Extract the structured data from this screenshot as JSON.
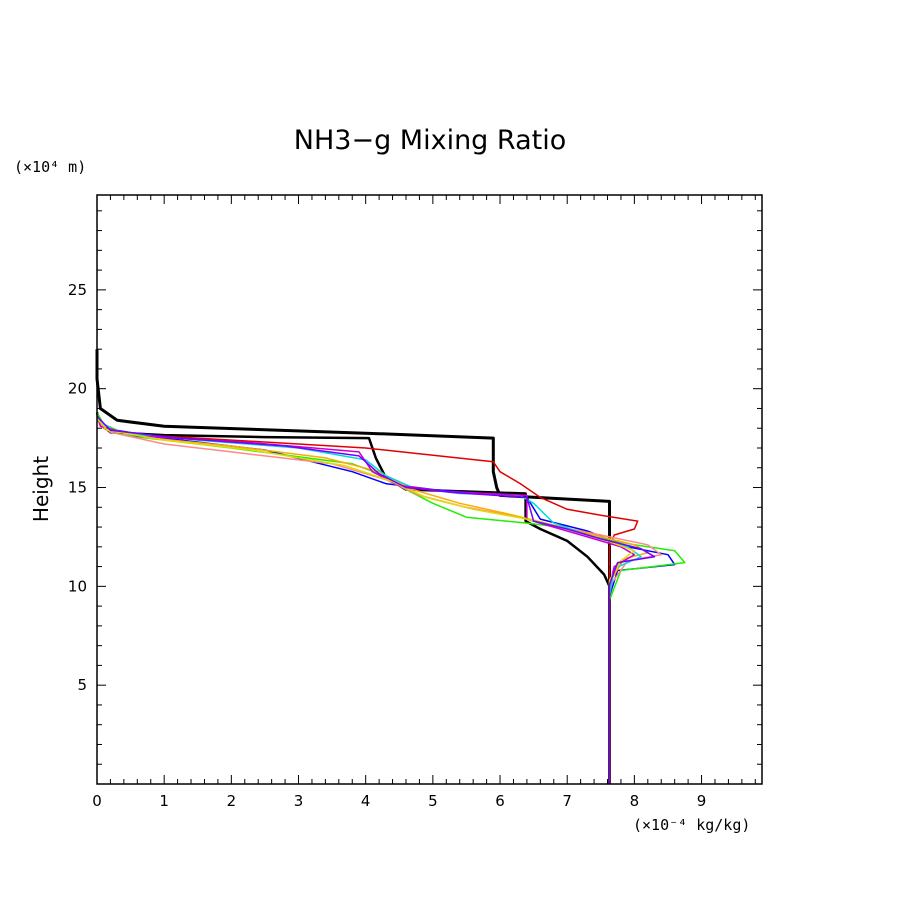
{
  "chart_data": {
    "type": "line",
    "title": "NH3−g Mixing Ratio",
    "xlabel": "",
    "ylabel": "Height",
    "x_unit": "(×10⁻⁴ kg/kg)",
    "y_unit": "(×10⁴ m)",
    "xlim": [
      0,
      9.9
    ],
    "ylim": [
      0,
      29.8
    ],
    "x_ticks": [
      0,
      1,
      2,
      3,
      4,
      5,
      6,
      7,
      8,
      9
    ],
    "y_ticks": [
      5,
      10,
      15,
      20,
      25
    ],
    "x_tick_labels": [
      "0",
      "1",
      "2",
      "3",
      "4",
      "5",
      "6",
      "7",
      "8",
      "9"
    ],
    "y_tick_labels": [
      "5",
      "10",
      "15",
      "20",
      "25"
    ],
    "grid": false,
    "series": [
      {
        "name": "profile-black-upper",
        "color": "#000000",
        "width": 3,
        "points": [
          [
            7.63,
            0
          ],
          [
            7.63,
            9
          ],
          [
            7.63,
            14.1
          ],
          [
            7.63,
            14.3
          ],
          [
            6.0,
            14.6
          ],
          [
            5.95,
            15.0
          ],
          [
            5.9,
            15.8
          ],
          [
            5.9,
            17.5
          ],
          [
            4.0,
            17.75
          ],
          [
            1.0,
            18.1
          ],
          [
            0.3,
            18.4
          ],
          [
            0.05,
            19.0
          ],
          [
            0.0,
            20.5
          ],
          [
            0.0,
            22.0
          ]
        ]
      },
      {
        "name": "profile-black-lower",
        "color": "#000000",
        "width": 2.5,
        "points": [
          [
            7.63,
            0
          ],
          [
            7.63,
            10.0
          ],
          [
            7.55,
            10.6
          ],
          [
            7.3,
            11.5
          ],
          [
            7.0,
            12.3
          ],
          [
            6.6,
            12.9
          ],
          [
            6.38,
            13.3
          ],
          [
            6.38,
            14.7
          ],
          [
            5.5,
            14.8
          ],
          [
            4.6,
            14.9
          ],
          [
            4.3,
            15.5
          ],
          [
            4.15,
            16.5
          ],
          [
            4.05,
            17.5
          ],
          [
            2.5,
            17.55
          ],
          [
            1.0,
            17.65
          ],
          [
            0.2,
            17.8
          ],
          [
            0.05,
            18.2
          ],
          [
            0.0,
            18.8
          ]
        ]
      },
      {
        "name": "profile-red",
        "color": "#e00000",
        "width": 1.5,
        "points": [
          [
            7.63,
            9
          ],
          [
            7.63,
            12.0
          ],
          [
            7.7,
            12.6
          ],
          [
            8.0,
            12.9
          ],
          [
            8.05,
            13.3
          ],
          [
            7.5,
            13.6
          ],
          [
            7.0,
            13.9
          ],
          [
            6.6,
            14.5
          ],
          [
            6.3,
            15.2
          ],
          [
            6.0,
            15.8
          ],
          [
            5.9,
            16.3
          ],
          [
            4.0,
            17.0
          ],
          [
            2.0,
            17.4
          ],
          [
            0.5,
            17.7
          ],
          [
            0.1,
            18.0
          ],
          [
            0.0,
            18.6
          ]
        ]
      },
      {
        "name": "profile-blue",
        "color": "#0000ff",
        "width": 1.5,
        "points": [
          [
            7.63,
            0
          ],
          [
            7.63,
            9.5
          ],
          [
            7.75,
            10.8
          ],
          [
            8.6,
            11.1
          ],
          [
            8.5,
            11.6
          ],
          [
            7.9,
            12.0
          ],
          [
            7.3,
            12.8
          ],
          [
            6.6,
            13.4
          ],
          [
            6.4,
            14.5
          ],
          [
            5.0,
            14.9
          ],
          [
            4.3,
            15.2
          ],
          [
            3.8,
            15.8
          ],
          [
            2.5,
            16.9
          ],
          [
            1.0,
            17.5
          ],
          [
            0.1,
            18.0
          ],
          [
            0.0,
            18.6
          ]
        ]
      },
      {
        "name": "profile-green",
        "color": "#22ee00",
        "width": 1.5,
        "points": [
          [
            7.63,
            0
          ],
          [
            7.63,
            9.3
          ],
          [
            7.8,
            10.8
          ],
          [
            8.75,
            11.2
          ],
          [
            8.6,
            11.8
          ],
          [
            8.0,
            12.1
          ],
          [
            7.4,
            12.5
          ],
          [
            6.9,
            13.0
          ],
          [
            6.4,
            13.2
          ],
          [
            5.5,
            13.5
          ],
          [
            5.0,
            14.2
          ],
          [
            4.6,
            14.9
          ],
          [
            4.2,
            15.7
          ],
          [
            3.8,
            16.2
          ],
          [
            2.0,
            17.0
          ],
          [
            0.5,
            17.6
          ],
          [
            0.1,
            18.2
          ],
          [
            0.0,
            18.8
          ]
        ]
      },
      {
        "name": "profile-pink",
        "color": "#ff8888",
        "width": 1.5,
        "points": [
          [
            7.63,
            0
          ],
          [
            7.63,
            10.0
          ],
          [
            7.9,
            11.3
          ],
          [
            8.4,
            11.6
          ],
          [
            8.2,
            12.1
          ],
          [
            7.5,
            12.6
          ],
          [
            6.9,
            13.0
          ],
          [
            6.3,
            13.5
          ],
          [
            5.5,
            14.0
          ],
          [
            4.8,
            14.6
          ],
          [
            4.3,
            15.4
          ],
          [
            3.5,
            16.2
          ],
          [
            2.0,
            16.8
          ],
          [
            1.0,
            17.2
          ],
          [
            0.2,
            17.8
          ],
          [
            0.0,
            18.4
          ]
        ]
      },
      {
        "name": "profile-orange",
        "color": "#ffaa00",
        "width": 1.5,
        "points": [
          [
            7.63,
            0
          ],
          [
            7.63,
            10.2
          ],
          [
            7.85,
            11.4
          ],
          [
            8.2,
            11.7
          ],
          [
            8.0,
            12.1
          ],
          [
            7.4,
            12.6
          ],
          [
            6.8,
            13.1
          ],
          [
            6.2,
            13.6
          ],
          [
            5.4,
            14.2
          ],
          [
            4.7,
            14.9
          ],
          [
            4.2,
            15.8
          ],
          [
            3.4,
            16.5
          ],
          [
            2.0,
            17.1
          ],
          [
            0.8,
            17.5
          ],
          [
            0.1,
            18.0
          ],
          [
            0.0,
            18.5
          ]
        ]
      },
      {
        "name": "profile-cyan",
        "color": "#00dddd",
        "width": 1.5,
        "points": [
          [
            7.63,
            9.5
          ],
          [
            7.7,
            10.9
          ],
          [
            8.1,
            11.5
          ],
          [
            7.9,
            12.0
          ],
          [
            7.3,
            12.6
          ],
          [
            6.8,
            13.2
          ],
          [
            6.5,
            14.2
          ],
          [
            6.3,
            14.6
          ],
          [
            5.4,
            14.7
          ],
          [
            4.7,
            15.0
          ],
          [
            4.3,
            15.6
          ],
          [
            4.0,
            16.4
          ],
          [
            3.0,
            17.0
          ],
          [
            1.5,
            17.4
          ],
          [
            0.3,
            17.8
          ],
          [
            0.0,
            18.4
          ]
        ]
      },
      {
        "name": "profile-magenta",
        "color": "#cc00cc",
        "width": 1.5,
        "points": [
          [
            7.63,
            0
          ],
          [
            7.63,
            2.5
          ],
          [
            7.63,
            10.0
          ],
          [
            7.7,
            11.0
          ],
          [
            8.0,
            11.6
          ],
          [
            7.8,
            12.0
          ],
          [
            7.3,
            12.5
          ],
          [
            6.8,
            13.0
          ],
          [
            6.4,
            13.4
          ],
          [
            6.4,
            14.6
          ],
          [
            5.2,
            14.8
          ],
          [
            4.5,
            15.1
          ],
          [
            4.1,
            15.8
          ],
          [
            3.9,
            16.8
          ],
          [
            2.2,
            17.3
          ],
          [
            0.6,
            17.6
          ],
          [
            0.05,
            18.1
          ],
          [
            0.0,
            18.7
          ]
        ]
      },
      {
        "name": "profile-yellow",
        "color": "#dddd00",
        "width": 1.5,
        "points": [
          [
            7.63,
            0
          ],
          [
            7.63,
            10.3
          ],
          [
            7.8,
            11.3
          ],
          [
            8.0,
            11.8
          ],
          [
            7.6,
            12.3
          ],
          [
            7.0,
            12.9
          ],
          [
            6.4,
            13.4
          ],
          [
            5.6,
            13.9
          ],
          [
            4.9,
            14.5
          ],
          [
            4.4,
            15.3
          ],
          [
            3.7,
            16.1
          ],
          [
            2.3,
            16.9
          ],
          [
            1.0,
            17.4
          ],
          [
            0.15,
            17.9
          ],
          [
            0.0,
            18.5
          ]
        ]
      },
      {
        "name": "profile-purple",
        "color": "#7700ff",
        "width": 1.5,
        "points": [
          [
            7.63,
            0
          ],
          [
            7.63,
            10.1
          ],
          [
            7.75,
            11.2
          ],
          [
            8.3,
            11.5
          ],
          [
            8.1,
            11.9
          ],
          [
            7.5,
            12.4
          ],
          [
            7.0,
            12.9
          ],
          [
            6.5,
            13.3
          ],
          [
            6.4,
            14.5
          ],
          [
            5.3,
            14.75
          ],
          [
            4.6,
            15.0
          ],
          [
            4.2,
            15.7
          ],
          [
            3.9,
            16.6
          ],
          [
            2.8,
            17.1
          ],
          [
            1.2,
            17.5
          ],
          [
            0.2,
            17.9
          ],
          [
            0.0,
            18.6
          ]
        ]
      }
    ]
  }
}
